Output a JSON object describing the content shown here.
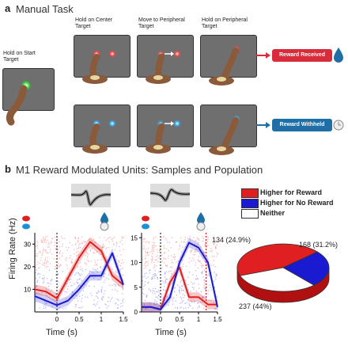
{
  "panel_a": {
    "letter": "a",
    "title": "Manual Task",
    "labels": {
      "start": "Hold on Start Target",
      "center": "Hold on Center Target",
      "move": "Move to Peripheral Target",
      "peripheral": "Hold on Peripheral Target"
    },
    "reward_received": "Reward Received",
    "reward_withheld": "Reward Withheld",
    "colors": {
      "received": "#d92b3a",
      "withheld": "#1f6fa6",
      "screen": "#6f6f6f",
      "arm": "#8a5a3a"
    }
  },
  "panel_b": {
    "letter": "b",
    "title": "M1 Reward Modulated Units: Samples and Population",
    "legend": [
      {
        "label": "Higher for Reward",
        "color": "#e02020"
      },
      {
        "label": "Higher for No Reward",
        "color": "#1a1ad0"
      },
      {
        "label": "Neither",
        "color": "#ffffff"
      }
    ],
    "ylabel": "Firing Rate (Hz)",
    "xlabel": "Time (s)"
  },
  "chart_data": [
    {
      "type": "line",
      "x": [
        -0.5,
        -0.25,
        0,
        0.25,
        0.5,
        0.75,
        1.0,
        1.25,
        1.5
      ],
      "series": [
        {
          "values": [
            10,
            9,
            6,
            15,
            24,
            31,
            27,
            16,
            12
          ]
        },
        {
          "values": [
            7,
            5,
            3,
            5,
            10,
            16,
            16,
            26,
            12
          ]
        }
      ],
      "xlim": [
        -0.5,
        1.5
      ],
      "ylim": [
        0,
        35
      ],
      "xticks": [
        "0",
        "0.5",
        "1",
        "1.5"
      ],
      "yticks": [
        "10",
        "20",
        "30"
      ],
      "xlabel": "Time (s)",
      "ylabel": "Firing Rate (Hz)"
    },
    {
      "type": "line",
      "x": [
        -0.5,
        -0.25,
        0,
        0.25,
        0.5,
        0.75,
        1.0,
        1.25,
        1.5
      ],
      "series": [
        {
          "values": [
            1,
            1,
            0.5,
            6,
            9,
            3,
            3,
            1.5,
            1.5
          ]
        },
        {
          "values": [
            1,
            1,
            0.5,
            3,
            10,
            14,
            13,
            10,
            1
          ]
        }
      ],
      "xlim": [
        -0.5,
        1.5
      ],
      "ylim": [
        0,
        16
      ],
      "xticks": [
        "0",
        "0.5",
        "1",
        "1.5"
      ],
      "yticks": [
        "0",
        "5",
        "10",
        "15"
      ],
      "xlabel": "Time (s)"
    },
    {
      "type": "pie",
      "categories": [
        "Higher for Reward",
        "Higher for No Reward",
        "Neither"
      ],
      "values": [
        237,
        134,
        168
      ],
      "labels": [
        "237 (44%)",
        "134 (24.9%)",
        "168 (31.2%)"
      ],
      "colors": [
        "#e02020",
        "#1a1ad0",
        "#ffffff"
      ]
    }
  ]
}
